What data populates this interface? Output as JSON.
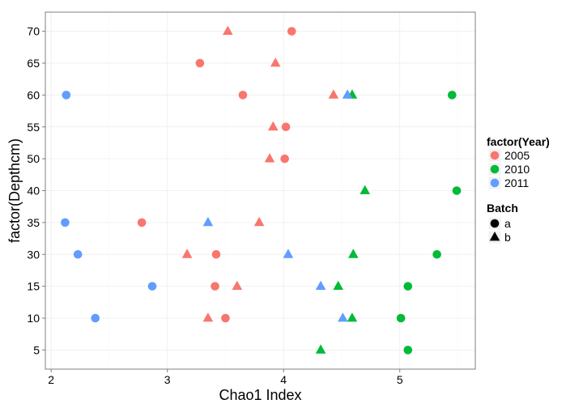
{
  "chart_data": {
    "type": "scatter",
    "xlabel": "Chao1 Index",
    "ylabel": "factor(Depthcm)",
    "x_ticks": [
      "2",
      "3",
      "4",
      "5"
    ],
    "xlim": [
      1.95,
      5.65
    ],
    "y_categories": [
      "5",
      "10",
      "15",
      "30",
      "35",
      "40",
      "50",
      "55",
      "60",
      "65",
      "70"
    ],
    "grid": true,
    "legend_position": "right",
    "color_legend": {
      "title": "factor(Year)",
      "entries": [
        {
          "label": "2005",
          "color": "#F8766D"
        },
        {
          "label": "2010",
          "color": "#00BA38"
        },
        {
          "label": "2011",
          "color": "#619CFF"
        }
      ]
    },
    "shape_legend": {
      "title": "Batch",
      "entries": [
        {
          "label": "a",
          "shape": "circle"
        },
        {
          "label": "b",
          "shape": "triangle"
        }
      ]
    },
    "series": [
      {
        "year": "2005",
        "batch": "a",
        "points": [
          {
            "x": 4.07,
            "y": "70"
          },
          {
            "x": 3.28,
            "y": "65"
          },
          {
            "x": 3.65,
            "y": "60"
          },
          {
            "x": 4.02,
            "y": "55"
          },
          {
            "x": 4.01,
            "y": "50"
          },
          {
            "x": 2.78,
            "y": "35"
          },
          {
            "x": 3.42,
            "y": "30"
          },
          {
            "x": 3.41,
            "y": "15"
          },
          {
            "x": 3.5,
            "y": "10"
          }
        ]
      },
      {
        "year": "2005",
        "batch": "b",
        "points": [
          {
            "x": 3.52,
            "y": "70"
          },
          {
            "x": 3.93,
            "y": "65"
          },
          {
            "x": 4.43,
            "y": "60"
          },
          {
            "x": 3.91,
            "y": "55"
          },
          {
            "x": 3.88,
            "y": "50"
          },
          {
            "x": 3.79,
            "y": "35"
          },
          {
            "x": 3.17,
            "y": "30"
          },
          {
            "x": 3.6,
            "y": "15"
          },
          {
            "x": 3.35,
            "y": "10"
          }
        ]
      },
      {
        "year": "2010",
        "batch": "a",
        "points": [
          {
            "x": 5.45,
            "y": "60"
          },
          {
            "x": 5.49,
            "y": "40"
          },
          {
            "x": 5.32,
            "y": "30"
          },
          {
            "x": 5.07,
            "y": "15"
          },
          {
            "x": 5.01,
            "y": "10"
          },
          {
            "x": 5.07,
            "y": "5"
          }
        ]
      },
      {
        "year": "2010",
        "batch": "b",
        "points": [
          {
            "x": 4.59,
            "y": "60"
          },
          {
            "x": 4.7,
            "y": "40"
          },
          {
            "x": 4.6,
            "y": "30"
          },
          {
            "x": 4.47,
            "y": "15"
          },
          {
            "x": 4.59,
            "y": "10"
          },
          {
            "x": 4.32,
            "y": "5"
          }
        ]
      },
      {
        "year": "2011",
        "batch": "a",
        "points": [
          {
            "x": 2.13,
            "y": "60"
          },
          {
            "x": 2.12,
            "y": "35"
          },
          {
            "x": 2.23,
            "y": "30"
          },
          {
            "x": 2.87,
            "y": "15"
          },
          {
            "x": 2.38,
            "y": "10"
          }
        ]
      },
      {
        "year": "2011",
        "batch": "b",
        "points": [
          {
            "x": 4.55,
            "y": "60"
          },
          {
            "x": 3.35,
            "y": "35"
          },
          {
            "x": 4.04,
            "y": "30"
          },
          {
            "x": 4.32,
            "y": "15"
          },
          {
            "x": 4.51,
            "y": "10"
          }
        ]
      }
    ]
  }
}
